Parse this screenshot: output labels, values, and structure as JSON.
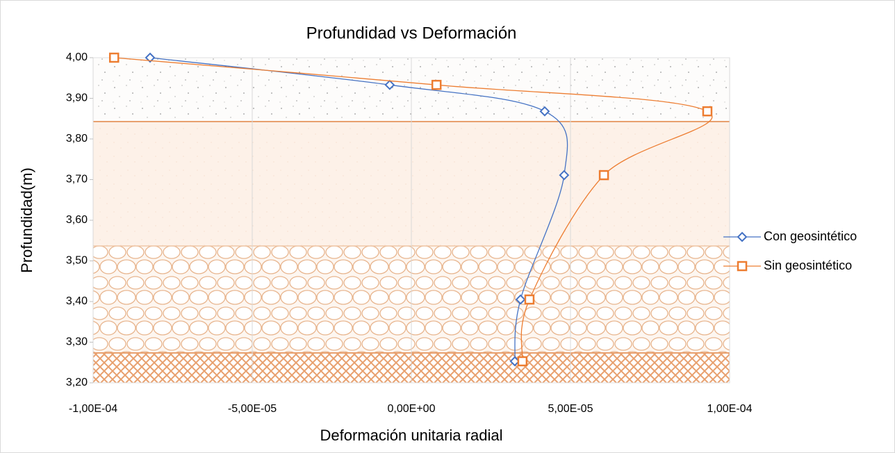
{
  "chart_data": {
    "type": "scatter",
    "title": "Profundidad vs Deformación",
    "x_label": "Deformación unitaria radial",
    "y_label": "Profundidad(m)",
    "xlim": [
      -0.0001,
      0.0001
    ],
    "xticks": [
      {
        "value": -0.0001,
        "label": "-1,00E-04"
      },
      {
        "value": -5e-05,
        "label": "-5,00E-05"
      },
      {
        "value": 0,
        "label": "0,00E+00"
      },
      {
        "value": 5e-05,
        "label": "5,00E-05"
      },
      {
        "value": 0.0001,
        "label": "1,00E-04"
      }
    ],
    "ylim": [
      3.2,
      4.0
    ],
    "yticks": [
      {
        "value": 3.2,
        "label": "3,20"
      },
      {
        "value": 3.3,
        "label": "3,30"
      },
      {
        "value": 3.4,
        "label": "3,40"
      },
      {
        "value": 3.5,
        "label": "3,50"
      },
      {
        "value": 3.6,
        "label": "3,60"
      },
      {
        "value": 3.7,
        "label": "3,70"
      },
      {
        "value": 3.8,
        "label": "3,80"
      },
      {
        "value": 3.9,
        "label": "3,90"
      },
      {
        "value": 4.0,
        "label": "4,00"
      }
    ],
    "grid": true,
    "smooth": true,
    "legend": "right",
    "series": [
      {
        "name": "Con geosintético",
        "color": "#4472c4",
        "marker": "diamond",
        "x": [
          -8.21e-05,
          -6.8e-06,
          4.19e-05,
          4.8e-05,
          3.43e-05,
          3.25e-05
        ],
        "values": [
          4.0,
          3.933,
          3.868,
          3.711,
          3.405,
          3.253
        ]
      },
      {
        "name": "Sin geosintético",
        "color": "#ed7d31",
        "marker": "square",
        "x": [
          -9.34e-05,
          7.9e-06,
          9.3e-05,
          6.05e-05,
          3.71e-05,
          3.49e-05
        ],
        "values": [
          4.0,
          3.933,
          3.868,
          3.711,
          3.405,
          3.253
        ]
      }
    ]
  }
}
